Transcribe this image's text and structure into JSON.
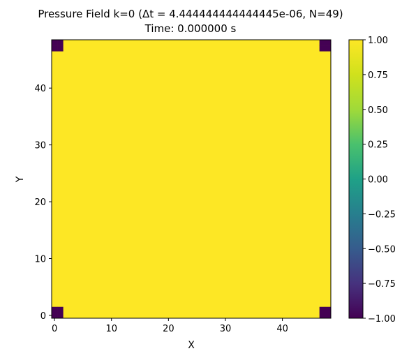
{
  "chart_data": {
    "type": "heatmap",
    "title": "Pressure Field k=0 (Δt = 4.444444444444445e-06, N=49)",
    "subtitle": "Time: 0.000000 s",
    "xlabel": "X",
    "ylabel": "Y",
    "grid_size": 49,
    "xlim": [
      -0.5,
      48.5
    ],
    "ylim": [
      -0.5,
      48.5
    ],
    "x_ticks": [
      0,
      10,
      20,
      30,
      40
    ],
    "y_ticks": [
      0,
      10,
      20,
      30,
      40
    ],
    "default_value": 1.0,
    "cells": [
      {
        "x": 0,
        "y": 0,
        "value": -1.0
      },
      {
        "x": 1,
        "y": 0,
        "value": -1.0
      },
      {
        "x": 0,
        "y": 1,
        "value": -1.0
      },
      {
        "x": 1,
        "y": 1,
        "value": -1.0
      },
      {
        "x": 47,
        "y": 0,
        "value": -1.0
      },
      {
        "x": 48,
        "y": 0,
        "value": -1.0
      },
      {
        "x": 47,
        "y": 1,
        "value": -1.0
      },
      {
        "x": 48,
        "y": 1,
        "value": -1.0
      },
      {
        "x": 0,
        "y": 47,
        "value": -1.0
      },
      {
        "x": 1,
        "y": 47,
        "value": -1.0
      },
      {
        "x": 0,
        "y": 48,
        "value": -1.0
      },
      {
        "x": 1,
        "y": 48,
        "value": -1.0
      },
      {
        "x": 47,
        "y": 47,
        "value": -1.0
      },
      {
        "x": 48,
        "y": 47,
        "value": -1.0
      },
      {
        "x": 47,
        "y": 48,
        "value": -1.0
      },
      {
        "x": 48,
        "y": 48,
        "value": -1.0
      }
    ],
    "colorbar": {
      "colormap": "viridis",
      "vmin": -1.0,
      "vmax": 1.0,
      "ticks": [
        1.0,
        0.75,
        0.5,
        0.25,
        0.0,
        -0.25,
        -0.5,
        -0.75,
        -1.0
      ],
      "tick_labels": [
        "1.00",
        "0.75",
        "0.50",
        "0.25",
        "0.00",
        "−0.25",
        "−0.50",
        "−0.75",
        "−1.00"
      ]
    },
    "colors": {
      "high": "#fde725",
      "low": "#440154"
    }
  }
}
